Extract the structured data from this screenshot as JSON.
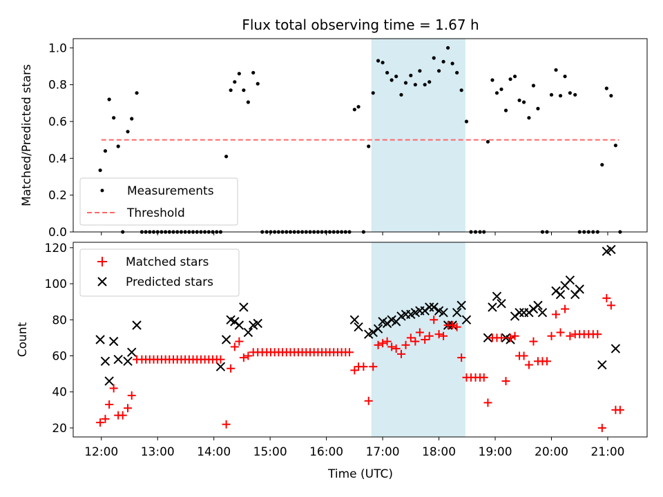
{
  "figure": {
    "title": "Flux total observing time = 1.67 h"
  },
  "chart_data": [
    {
      "type": "scatter",
      "panel": "top",
      "ylabel": "Matched/Predicted stars",
      "xlabel": "",
      "x_unit": "hours (UTC)",
      "xlim": [
        11.5,
        21.7
      ],
      "ylim": [
        0.0,
        1.05
      ],
      "yticks": [
        "0.0",
        "0.2",
        "0.4",
        "0.6",
        "0.8",
        "1.0"
      ],
      "grid": false,
      "legend_position": "lower-left",
      "shaded_interval": [
        16.8,
        18.47
      ],
      "shaded_color": "#add8e6",
      "threshold": {
        "name": "Threshold",
        "value": 0.5,
        "x_range": [
          12.0,
          21.2
        ],
        "color": "#ff6666"
      },
      "series": [
        {
          "name": "Measurements",
          "color": "#000000",
          "marker": "dot",
          "x": [
            11.98,
            12.07,
            12.14,
            12.22,
            12.3,
            12.38,
            12.47,
            12.54,
            12.63,
            12.72,
            12.79,
            12.86,
            12.93,
            13.0,
            13.07,
            13.14,
            13.21,
            13.28,
            13.35,
            13.42,
            13.49,
            13.56,
            13.63,
            13.7,
            13.77,
            13.84,
            13.91,
            13.98,
            14.05,
            14.12,
            14.22,
            14.3,
            14.37,
            14.45,
            14.53,
            14.61,
            14.7,
            14.78,
            14.86,
            14.94,
            15.01,
            15.08,
            15.15,
            15.22,
            15.29,
            15.36,
            15.43,
            15.5,
            15.57,
            15.64,
            15.71,
            15.78,
            15.85,
            15.92,
            15.99,
            16.06,
            16.13,
            16.2,
            16.27,
            16.34,
            16.41,
            16.5,
            16.57,
            16.66,
            16.75,
            16.83,
            16.92,
            17.0,
            17.08,
            17.16,
            17.24,
            17.33,
            17.41,
            17.5,
            17.58,
            17.66,
            17.75,
            17.83,
            17.91,
            18.0,
            18.08,
            18.16,
            18.24,
            18.32,
            18.4,
            18.49,
            18.57,
            18.65,
            18.73,
            18.8,
            18.87,
            18.95,
            19.03,
            19.11,
            19.19,
            19.27,
            19.35,
            19.43,
            19.51,
            19.6,
            19.68,
            19.76,
            19.84,
            19.92,
            20.0,
            20.08,
            20.16,
            20.24,
            20.33,
            20.42,
            20.5,
            20.58,
            20.66,
            20.74,
            20.82,
            20.9,
            20.98,
            21.06,
            21.14,
            21.22
          ],
          "y": [
            0.335,
            0.44,
            0.72,
            0.62,
            0.465,
            0.0,
            0.545,
            0.615,
            0.755,
            0.0,
            0.0,
            0.0,
            0.0,
            0.0,
            0.0,
            0.0,
            0.0,
            0.0,
            0.0,
            0.0,
            0.0,
            0.0,
            0.0,
            0.0,
            0.0,
            0.0,
            0.0,
            0.0,
            0.0,
            0.0,
            0.41,
            0.77,
            0.815,
            0.86,
            0.77,
            0.705,
            0.865,
            0.805,
            0.0,
            0.0,
            0.0,
            0.0,
            0.0,
            0.0,
            0.0,
            0.0,
            0.0,
            0.0,
            0.0,
            0.0,
            0.0,
            0.0,
            0.0,
            0.0,
            0.0,
            0.0,
            0.0,
            0.0,
            0.0,
            0.0,
            0.0,
            0.665,
            0.68,
            0.0,
            0.465,
            0.755,
            0.93,
            0.92,
            0.865,
            0.825,
            0.845,
            0.745,
            0.81,
            0.85,
            0.8,
            0.875,
            0.8,
            0.815,
            0.945,
            0.875,
            0.925,
            1.0,
            0.915,
            0.865,
            0.77,
            0.6,
            0.0,
            0.0,
            0.0,
            0.0,
            0.49,
            0.825,
            0.755,
            0.775,
            0.66,
            0.83,
            0.845,
            0.715,
            0.705,
            0.62,
            0.795,
            0.67,
            0.0,
            0.0,
            0.745,
            0.88,
            0.74,
            0.845,
            0.755,
            0.745,
            0.0,
            0.0,
            0.0,
            0.0,
            0.0,
            0.365,
            0.78,
            0.74,
            0.47,
            0.0
          ]
        }
      ]
    },
    {
      "type": "scatter",
      "panel": "bottom",
      "ylabel": "Count",
      "xlabel": "Time (UTC)",
      "x_unit": "hours (UTC)",
      "xlim": [
        11.5,
        21.7
      ],
      "ylim": [
        15,
        123
      ],
      "yticks": [
        "20",
        "40",
        "60",
        "80",
        "100",
        "120"
      ],
      "xticks": [
        "12:00",
        "13:00",
        "14:00",
        "15:00",
        "16:00",
        "17:00",
        "18:00",
        "19:00",
        "20:00",
        "21:00"
      ],
      "grid": false,
      "legend_position": "upper-left",
      "shaded_interval": [
        16.8,
        18.47
      ],
      "shaded_color": "#add8e6",
      "series": [
        {
          "name": "Matched stars",
          "color": "#ff0000",
          "marker": "plus",
          "x": [
            11.98,
            12.07,
            12.14,
            12.22,
            12.3,
            12.38,
            12.47,
            12.54,
            12.63,
            12.72,
            12.79,
            12.86,
            12.93,
            13.0,
            13.07,
            13.14,
            13.21,
            13.28,
            13.35,
            13.42,
            13.49,
            13.56,
            13.63,
            13.7,
            13.77,
            13.84,
            13.91,
            13.98,
            14.05,
            14.12,
            14.22,
            14.3,
            14.37,
            14.45,
            14.53,
            14.61,
            14.7,
            14.78,
            14.86,
            14.94,
            15.01,
            15.08,
            15.15,
            15.22,
            15.29,
            15.36,
            15.43,
            15.5,
            15.57,
            15.64,
            15.71,
            15.78,
            15.85,
            15.92,
            15.99,
            16.06,
            16.13,
            16.2,
            16.27,
            16.34,
            16.41,
            16.5,
            16.57,
            16.66,
            16.75,
            16.83,
            16.92,
            17.0,
            17.08,
            17.16,
            17.24,
            17.33,
            17.41,
            17.5,
            17.58,
            17.66,
            17.75,
            17.83,
            17.91,
            18.0,
            18.08,
            18.16,
            18.24,
            18.32,
            18.4,
            18.49,
            18.57,
            18.65,
            18.73,
            18.8,
            18.87,
            18.95,
            19.03,
            19.11,
            19.19,
            19.27,
            19.35,
            19.43,
            19.51,
            19.6,
            19.68,
            19.76,
            19.84,
            19.92,
            20.0,
            20.08,
            20.16,
            20.24,
            20.33,
            20.42,
            20.5,
            20.58,
            20.66,
            20.74,
            20.82,
            20.9,
            20.98,
            21.06,
            21.14,
            21.22
          ],
          "y": [
            23,
            25,
            33,
            42,
            27,
            27,
            31,
            38,
            58,
            58,
            58,
            58,
            58,
            58,
            58,
            58,
            58,
            58,
            58,
            58,
            58,
            58,
            58,
            58,
            58,
            58,
            58,
            58,
            58,
            58,
            22,
            53,
            65,
            68,
            59,
            60,
            62,
            62,
            62,
            62,
            62,
            62,
            62,
            62,
            62,
            62,
            62,
            62,
            62,
            62,
            62,
            62,
            62,
            62,
            62,
            62,
            62,
            62,
            62,
            62,
            62,
            52,
            54,
            54,
            35,
            54,
            66,
            67,
            68,
            65,
            64,
            61,
            66,
            70,
            68,
            73,
            69,
            71,
            80,
            72,
            71,
            77,
            77,
            76,
            59,
            48,
            48,
            48,
            48,
            48,
            34,
            70,
            70,
            70,
            46,
            70,
            71,
            60,
            60,
            55,
            68,
            57,
            57,
            57,
            71,
            83,
            73,
            86,
            71,
            72,
            72,
            72,
            72,
            72,
            72,
            20,
            92,
            88,
            30,
            30
          ]
        },
        {
          "name": "Predicted stars",
          "color": "#000000",
          "marker": "x",
          "x": [
            11.98,
            12.07,
            12.14,
            12.22,
            12.3,
            12.47,
            12.54,
            12.63,
            14.12,
            14.22,
            14.3,
            14.37,
            14.45,
            14.53,
            14.61,
            14.7,
            14.78,
            16.5,
            16.57,
            16.75,
            16.83,
            16.92,
            17.0,
            17.08,
            17.16,
            17.24,
            17.33,
            17.41,
            17.5,
            17.58,
            17.66,
            17.75,
            17.83,
            17.91,
            18.0,
            18.08,
            18.16,
            18.24,
            18.32,
            18.4,
            18.49,
            18.87,
            18.95,
            19.03,
            19.11,
            19.19,
            19.27,
            19.35,
            19.43,
            19.51,
            19.6,
            19.68,
            19.76,
            19.84,
            20.08,
            20.16,
            20.24,
            20.33,
            20.42,
            20.5,
            20.9,
            20.98,
            21.06,
            21.14
          ],
          "y": [
            69,
            57,
            46,
            68,
            58,
            57,
            62,
            77,
            54,
            69,
            80,
            79,
            77,
            87,
            73,
            77,
            78,
            80,
            76,
            72,
            73,
            75,
            79,
            78,
            80,
            79,
            82,
            83,
            83,
            84,
            85,
            85,
            87,
            87,
            85,
            84,
            77,
            77,
            84,
            88,
            80,
            70,
            87,
            93,
            89,
            70,
            69,
            82,
            84,
            84,
            84,
            86,
            88,
            84,
            96,
            94,
            99,
            102,
            94,
            97,
            55,
            118,
            119,
            64
          ]
        }
      ]
    }
  ]
}
